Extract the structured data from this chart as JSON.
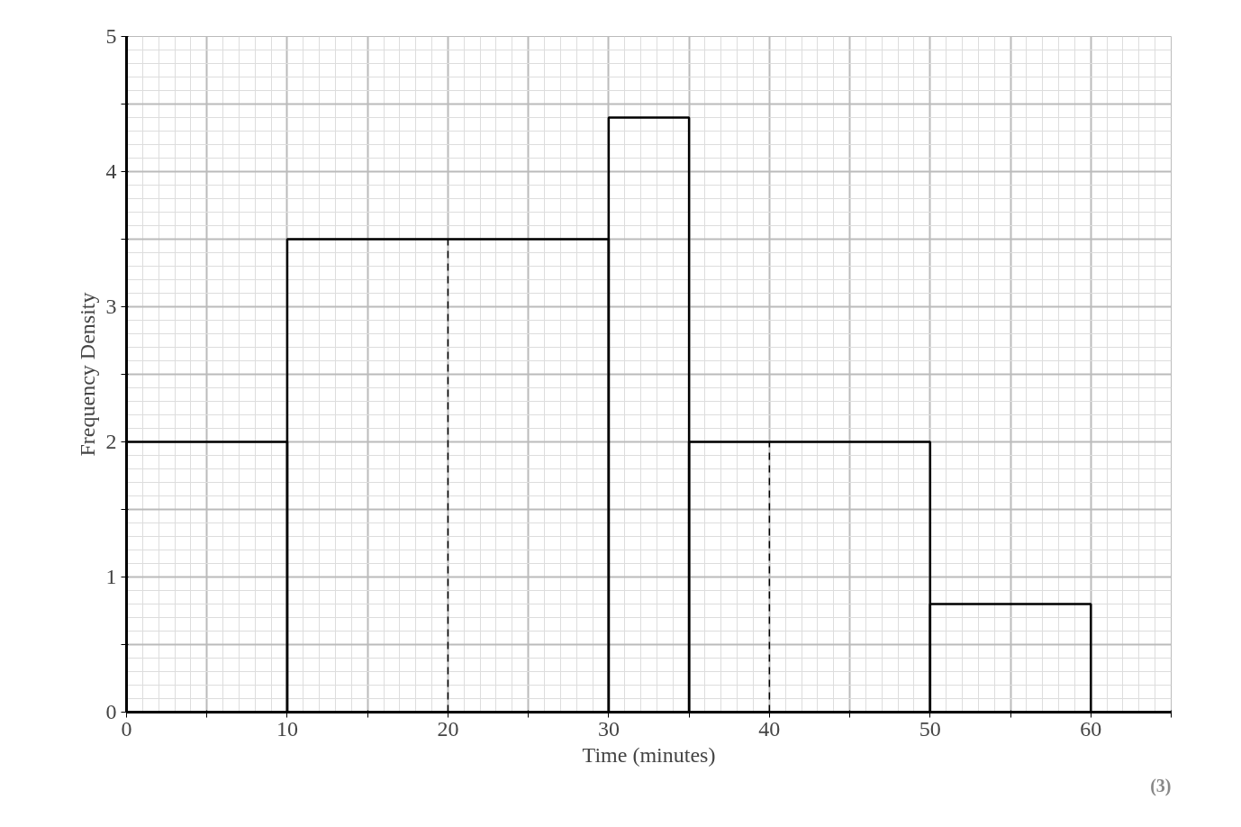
{
  "chart_data": {
    "type": "histogram",
    "xlabel": "Time (minutes)",
    "ylabel": "Frequency Density",
    "bins": [
      0,
      10,
      30,
      35,
      50,
      60
    ],
    "values": [
      2,
      3.5,
      4.4,
      2,
      0.8
    ],
    "color": "#000000",
    "xlim": [
      0,
      65
    ],
    "ylim": [
      0,
      5
    ],
    "xticks": [
      0,
      {
        "value": 5,
        "label": null
      },
      10,
      {
        "value": 15,
        "label": null
      },
      20,
      {
        "value": 25,
        "label": null
      },
      30,
      {
        "value": 35,
        "label": null
      },
      40,
      {
        "value": 45,
        "label": null
      },
      50,
      {
        "value": 55,
        "label": null
      },
      60,
      {
        "value": 65,
        "label": null
      }
    ],
    "yticks": [
      0,
      {
        "value": 0.5,
        "label": null
      },
      1,
      {
        "value": 1.5,
        "label": null
      },
      2,
      {
        "value": 2.5,
        "label": null
      },
      3,
      {
        "value": 3.5,
        "label": null
      },
      4,
      {
        "value": 4.5,
        "label": null
      },
      5
    ],
    "grid": true,
    "ref_lines": [
      {
        "axis": "x",
        "value": 20,
        "line_style": "dashed"
      },
      {
        "axis": "x",
        "value": 40,
        "line_style": "dashed"
      }
    ],
    "annotations": [
      "(3)"
    ]
  }
}
